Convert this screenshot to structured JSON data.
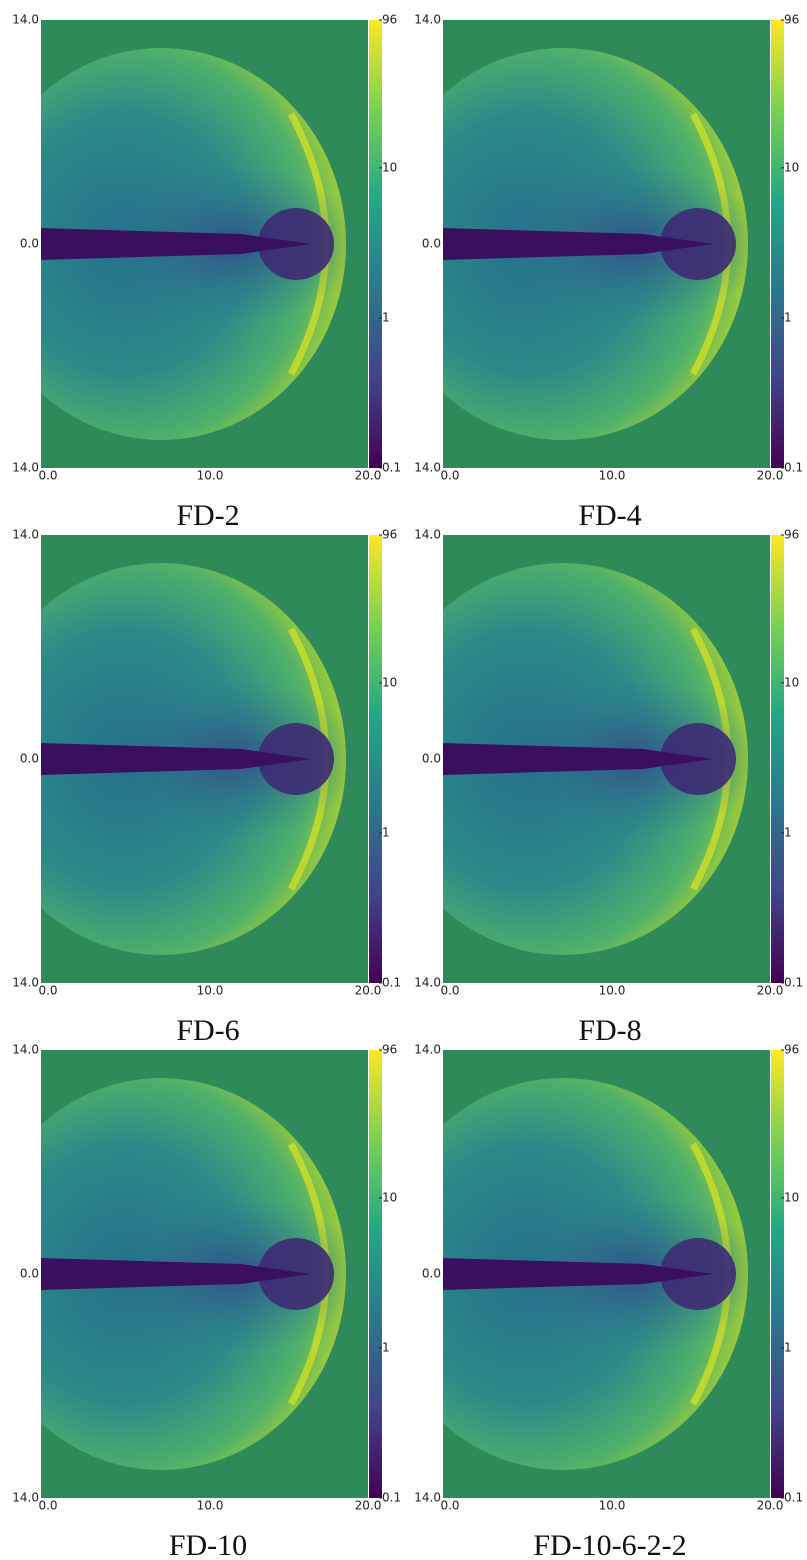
{
  "panels": [
    {
      "caption": "FD-2",
      "y_ticks": [
        "14.0",
        "0.0",
        "14.0"
      ],
      "x_ticks": [
        "0.0",
        "10.0",
        "20.0"
      ],
      "colorbar_ticks": [
        "96",
        "10",
        "1",
        "0.1"
      ]
    },
    {
      "caption": "FD-4",
      "y_ticks": [
        "14.0",
        "0.0",
        "14.0"
      ],
      "x_ticks": [
        "0.0",
        "10.0",
        "20.0"
      ],
      "colorbar_ticks": [
        "96",
        "10",
        "1",
        "0.1"
      ]
    },
    {
      "caption": "FD-6",
      "y_ticks": [
        "14.0",
        "0.0",
        "14.0"
      ],
      "x_ticks": [
        "0.0",
        "10.0",
        "20.0"
      ],
      "colorbar_ticks": [
        "96",
        "10",
        "1",
        "0.1"
      ]
    },
    {
      "caption": "FD-8",
      "y_ticks": [
        "14.0",
        "0.0",
        "14.0"
      ],
      "x_ticks": [
        "0.0",
        "10.0",
        "20.0"
      ],
      "colorbar_ticks": [
        "96",
        "10",
        "1",
        "0.1"
      ]
    },
    {
      "caption": "FD-10",
      "y_ticks": [
        "14.0",
        "0.0",
        "14.0"
      ],
      "x_ticks": [
        "0.0",
        "10.0",
        "20.0"
      ],
      "colorbar_ticks": [
        "96",
        "10",
        "1",
        "0.1"
      ]
    },
    {
      "caption": "FD-10-6-2-2",
      "y_ticks": [
        "14.0",
        "0.0",
        "14.0"
      ],
      "x_ticks": [
        "0.0",
        "10.0",
        "20.0"
      ],
      "colorbar_ticks": [
        "96",
        "10",
        "1",
        "0.1"
      ]
    }
  ]
}
